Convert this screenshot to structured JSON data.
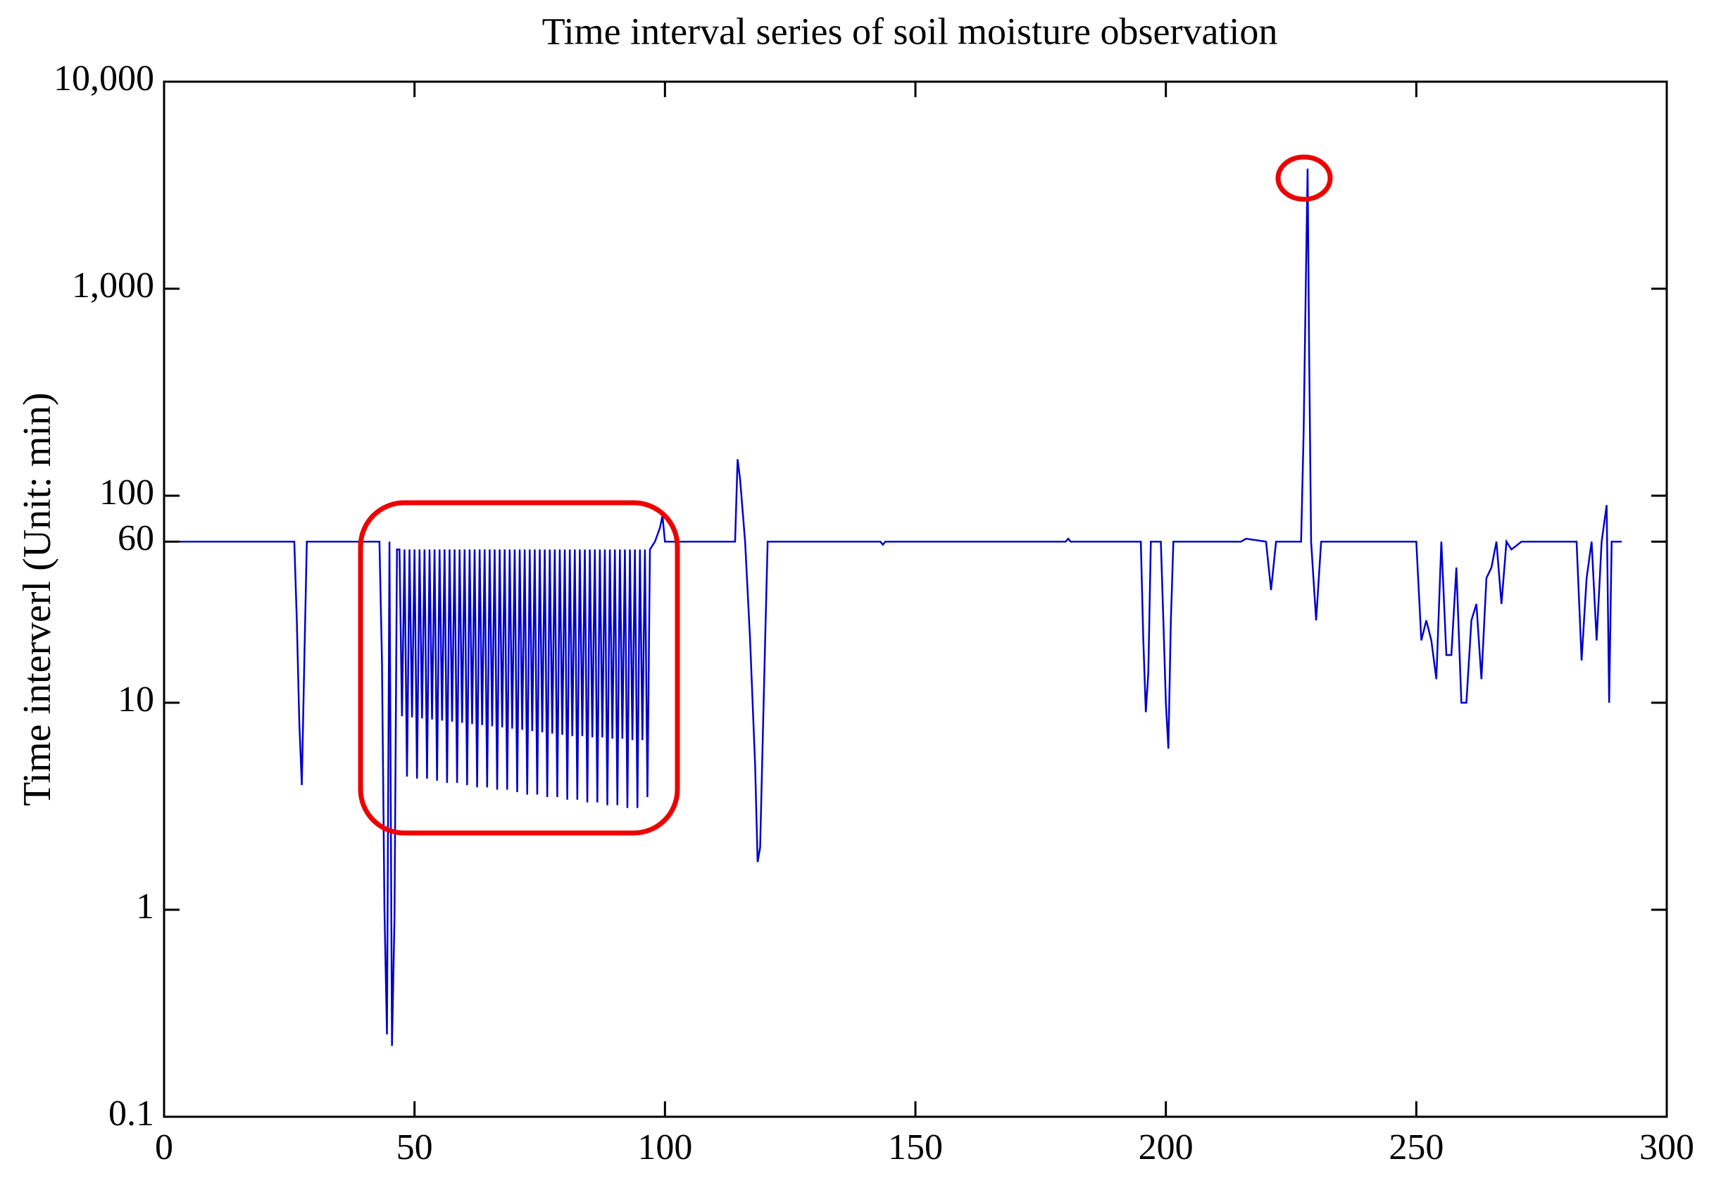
{
  "chart_data": {
    "type": "line",
    "title": "Time interval series of soil moisture observation",
    "y_label": "Time interverl (Unit: min)",
    "log_scale": true,
    "grid": false,
    "xlim": [
      0,
      300
    ],
    "xticks": [
      0,
      50,
      100,
      150,
      200,
      250,
      300
    ],
    "ylim": [
      0.1,
      10000
    ],
    "yticks": [
      0.1,
      1,
      10,
      60,
      100,
      {
        "value": 1000,
        "label": "1,000"
      },
      {
        "value": 10000,
        "label": "10,000"
      }
    ],
    "series": [
      {
        "color": "#0000cc",
        "x": [
          0,
          26,
          26.5,
          27,
          27.5,
          28,
          28.5,
          43,
          43.5,
          44,
          44.5,
          45,
          45.5,
          46,
          46.5,
          47,
          47.5,
          48,
          48.5,
          49,
          49.5,
          50,
          50.5,
          51,
          51.5,
          52,
          52.5,
          53,
          53.5,
          54,
          54.5,
          55,
          55.5,
          56,
          56.5,
          57,
          57.5,
          58,
          58.5,
          59,
          59.5,
          60,
          60.5,
          61,
          61.5,
          62,
          62.5,
          63,
          63.5,
          64,
          64.5,
          65,
          65.5,
          66,
          66.5,
          67,
          67.5,
          68,
          68.5,
          69,
          69.5,
          70,
          70.5,
          71,
          71.5,
          72,
          72.5,
          73,
          73.5,
          74,
          74.5,
          75,
          75.5,
          76,
          76.5,
          77,
          77.5,
          78,
          78.5,
          79,
          79.5,
          80,
          80.5,
          81,
          81.5,
          82,
          82.5,
          83,
          83.5,
          84,
          84.5,
          85,
          85.5,
          86,
          86.5,
          87,
          87.5,
          88,
          88.5,
          89,
          89.5,
          90,
          90.5,
          91,
          91.5,
          92,
          92.5,
          93,
          93.5,
          94,
          94.5,
          95,
          95.5,
          96,
          96.5,
          97,
          98,
          99,
          99.5,
          100,
          114,
          114.5,
          115,
          116,
          117,
          118,
          118.5,
          119,
          120,
          120.5,
          143,
          143.5,
          144,
          180,
          180.5,
          181,
          195,
          195.5,
          196,
          196.5,
          197,
          199,
          199.5,
          200,
          200.5,
          201,
          201.5,
          215,
          216,
          220,
          221,
          222,
          227,
          227.5,
          228,
          228.3,
          228.6,
          229,
          230,
          231,
          250,
          251,
          252,
          253,
          254,
          255,
          256,
          257,
          258,
          259,
          260,
          261,
          262,
          263,
          264,
          265,
          266,
          267,
          268,
          269,
          271,
          282,
          283,
          284,
          285,
          286,
          287,
          288,
          288.5,
          289,
          291
        ],
        "values": [
          60,
          60,
          25,
          8,
          4,
          16,
          60,
          60,
          16,
          1,
          0.25,
          60,
          0.22,
          0.9,
          55,
          55,
          8.6,
          55,
          4.4,
          55,
          8.5,
          55,
          4.3,
          55,
          8.4,
          55,
          4.3,
          55,
          8.3,
          55,
          4.2,
          55,
          8.2,
          55,
          4.1,
          55,
          8.1,
          55,
          4.1,
          55,
          8.0,
          55,
          4.0,
          55,
          7.9,
          55,
          3.9,
          55,
          7.8,
          55,
          3.9,
          55,
          7.7,
          55,
          3.8,
          55,
          7.6,
          55,
          3.8,
          55,
          7.5,
          55,
          3.7,
          55,
          7.4,
          55,
          3.6,
          55,
          7.3,
          55,
          3.6,
          55,
          7.2,
          55,
          3.5,
          55,
          7.1,
          55,
          3.5,
          55,
          7.0,
          55,
          3.4,
          55,
          6.9,
          55,
          3.4,
          55,
          6.9,
          55,
          3.3,
          55,
          6.8,
          55,
          3.3,
          55,
          6.8,
          55,
          3.2,
          55,
          6.7,
          55,
          3.2,
          55,
          6.7,
          55,
          3.1,
          55,
          6.6,
          55,
          3.1,
          55,
          6.6,
          55,
          3.5,
          55,
          60,
          70,
          80,
          60,
          60,
          150,
          120,
          60,
          20,
          5,
          1.7,
          2,
          20,
          60,
          60,
          58,
          60,
          60,
          62,
          60,
          60,
          20,
          9,
          14,
          60,
          60,
          25,
          10,
          6,
          25,
          60,
          60,
          62,
          60,
          35,
          60,
          60,
          200,
          1300,
          3800,
          500,
          60,
          25,
          60,
          60,
          20,
          25,
          20,
          13,
          60,
          17,
          17,
          45,
          10,
          10,
          25,
          30,
          13,
          40,
          45,
          60,
          30,
          60,
          55,
          60,
          60,
          16,
          40,
          60,
          20,
          60,
          90,
          10,
          60,
          60
        ]
      }
    ]
  }
}
